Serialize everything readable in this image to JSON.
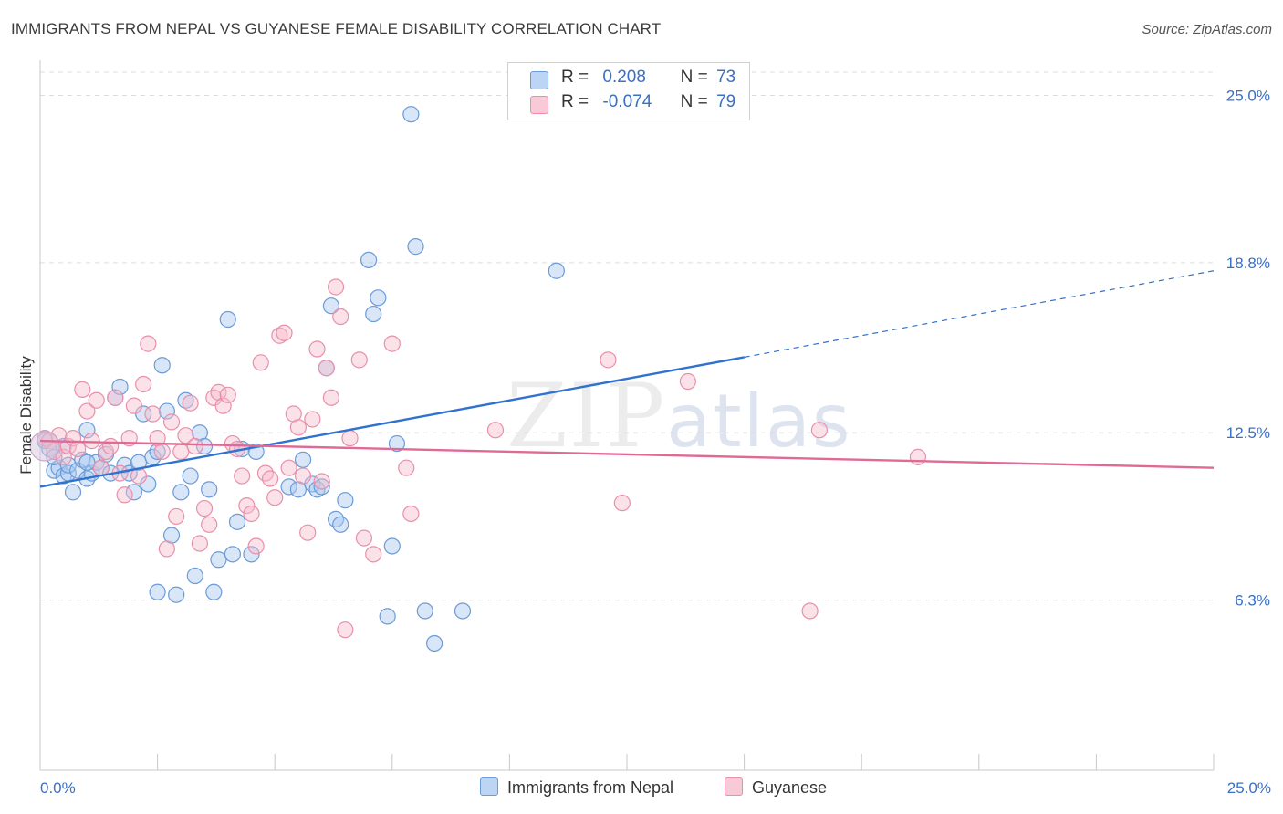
{
  "title": "IMMIGRANTS FROM NEPAL VS GUYANESE FEMALE DISABILITY CORRELATION CHART",
  "source": "Source: ZipAtlas.com",
  "watermark": {
    "zip": "ZIP",
    "atlas": "atlas"
  },
  "legend": {
    "r_label": "R =",
    "n_label": "N =",
    "entries": [
      {
        "r": "0.208",
        "n": "73"
      },
      {
        "r": "-0.074",
        "n": "79"
      }
    ]
  },
  "bottom_legend": [
    "Immigrants from Nepal",
    "Guyanese"
  ],
  "colors": {
    "nepal_fill": "#a9c8f0",
    "nepal_stroke": "#6b9bd8",
    "nepal_line": "#2f72cf",
    "guyanese_fill": "#f6bccd",
    "guyanese_stroke": "#e890ab",
    "guyanese_line": "#e06a96",
    "tick_label": "#3a6fc4"
  },
  "chart_data": {
    "type": "scatter",
    "title": "IMMIGRANTS FROM NEPAL VS GUYANESE FEMALE DISABILITY CORRELATION CHART",
    "xlabel": "",
    "ylabel": "Female Disability",
    "xlim": [
      0,
      25
    ],
    "ylim": [
      0,
      26.3
    ],
    "x_tick_labels": [
      "0.0%",
      "25.0%"
    ],
    "y_ticks": [
      6.3,
      12.5,
      18.8,
      25.0
    ],
    "y_tick_labels": [
      "6.3%",
      "12.5%",
      "18.8%",
      "25.0%"
    ],
    "grid": "horizontal dashed",
    "legend_position": "top-center",
    "series": [
      {
        "name": "Immigrants from Nepal",
        "r": 0.208,
        "n": 73,
        "trend": {
          "x0": 0,
          "y0": 10.5,
          "x1": 15.0,
          "y1": 15.3,
          "dashed_to_x": 25,
          "dashed_to_y": 18.5
        },
        "points": [
          [
            0.1,
            12.2
          ],
          [
            0.2,
            11.9
          ],
          [
            0.3,
            11.1
          ],
          [
            0.4,
            11.2
          ],
          [
            0.5,
            10.9
          ],
          [
            0.5,
            12.0
          ],
          [
            0.6,
            11.0
          ],
          [
            0.6,
            11.3
          ],
          [
            0.7,
            10.3
          ],
          [
            0.8,
            11.1
          ],
          [
            0.9,
            11.5
          ],
          [
            1.0,
            12.6
          ],
          [
            1.0,
            10.8
          ],
          [
            1.1,
            11.0
          ],
          [
            1.2,
            11.4
          ],
          [
            1.3,
            11.2
          ],
          [
            1.4,
            11.7
          ],
          [
            1.5,
            11.0
          ],
          [
            1.6,
            13.8
          ],
          [
            1.7,
            14.2
          ],
          [
            1.8,
            11.3
          ],
          [
            1.9,
            11.0
          ],
          [
            2.0,
            10.3
          ],
          [
            2.1,
            11.4
          ],
          [
            2.2,
            13.2
          ],
          [
            2.3,
            10.6
          ],
          [
            2.4,
            11.6
          ],
          [
            2.5,
            6.6
          ],
          [
            2.6,
            15.0
          ],
          [
            2.7,
            13.3
          ],
          [
            2.8,
            8.7
          ],
          [
            2.9,
            6.5
          ],
          [
            3.0,
            10.3
          ],
          [
            3.1,
            13.7
          ],
          [
            3.2,
            10.9
          ],
          [
            3.3,
            7.2
          ],
          [
            3.4,
            12.5
          ],
          [
            3.5,
            12.0
          ],
          [
            3.6,
            10.4
          ],
          [
            3.7,
            6.6
          ],
          [
            3.8,
            7.8
          ],
          [
            4.0,
            16.7
          ],
          [
            4.1,
            8.0
          ],
          [
            4.2,
            9.2
          ],
          [
            4.3,
            11.9
          ],
          [
            4.5,
            8.0
          ],
          [
            4.6,
            11.8
          ],
          [
            5.3,
            10.5
          ],
          [
            5.5,
            10.4
          ],
          [
            5.6,
            11.5
          ],
          [
            5.8,
            10.6
          ],
          [
            5.9,
            10.4
          ],
          [
            6.0,
            10.5
          ],
          [
            6.1,
            14.9
          ],
          [
            6.2,
            17.2
          ],
          [
            6.3,
            9.3
          ],
          [
            6.4,
            9.1
          ],
          [
            6.5,
            10.0
          ],
          [
            7.0,
            18.9
          ],
          [
            7.1,
            16.9
          ],
          [
            7.2,
            17.5
          ],
          [
            7.4,
            5.7
          ],
          [
            7.5,
            8.3
          ],
          [
            7.6,
            12.1
          ],
          [
            7.9,
            24.3
          ],
          [
            8.0,
            19.4
          ],
          [
            8.2,
            5.9
          ],
          [
            8.4,
            4.7
          ],
          [
            9.0,
            5.9
          ],
          [
            11.0,
            18.5
          ],
          [
            1.0,
            11.4
          ],
          [
            0.3,
            11.6
          ],
          [
            2.5,
            11.8
          ]
        ]
      },
      {
        "name": "Guyanese",
        "r": -0.074,
        "n": 79,
        "trend": {
          "x0": 0,
          "y0": 12.2,
          "x1": 25,
          "y1": 11.2
        },
        "points": [
          [
            0.1,
            12.3
          ],
          [
            0.2,
            12.2
          ],
          [
            0.3,
            11.8
          ],
          [
            0.4,
            12.4
          ],
          [
            0.5,
            11.6
          ],
          [
            0.6,
            12.0
          ],
          [
            0.7,
            12.3
          ],
          [
            0.8,
            11.9
          ],
          [
            0.9,
            14.1
          ],
          [
            1.0,
            13.3
          ],
          [
            1.1,
            12.2
          ],
          [
            1.2,
            13.7
          ],
          [
            1.3,
            11.2
          ],
          [
            1.4,
            11.8
          ],
          [
            1.5,
            12.0
          ],
          [
            1.6,
            13.8
          ],
          [
            1.7,
            11.0
          ],
          [
            1.8,
            10.2
          ],
          [
            1.9,
            12.3
          ],
          [
            2.0,
            13.5
          ],
          [
            2.1,
            10.9
          ],
          [
            2.2,
            14.3
          ],
          [
            2.3,
            15.8
          ],
          [
            2.4,
            13.2
          ],
          [
            2.5,
            12.3
          ],
          [
            2.6,
            11.8
          ],
          [
            2.7,
            8.2
          ],
          [
            2.8,
            12.9
          ],
          [
            2.9,
            9.4
          ],
          [
            3.0,
            11.8
          ],
          [
            3.1,
            12.4
          ],
          [
            3.2,
            13.6
          ],
          [
            3.3,
            12.0
          ],
          [
            3.4,
            8.4
          ],
          [
            3.5,
            9.7
          ],
          [
            3.6,
            9.1
          ],
          [
            3.7,
            13.8
          ],
          [
            3.8,
            14.0
          ],
          [
            3.9,
            13.5
          ],
          [
            4.0,
            13.9
          ],
          [
            4.1,
            12.1
          ],
          [
            4.2,
            11.9
          ],
          [
            4.3,
            10.9
          ],
          [
            4.4,
            9.8
          ],
          [
            4.5,
            9.5
          ],
          [
            4.6,
            8.3
          ],
          [
            4.7,
            15.1
          ],
          [
            4.8,
            11.0
          ],
          [
            4.9,
            10.8
          ],
          [
            5.0,
            10.1
          ],
          [
            5.1,
            16.1
          ],
          [
            5.2,
            16.2
          ],
          [
            5.3,
            11.2
          ],
          [
            5.4,
            13.2
          ],
          [
            5.5,
            12.7
          ],
          [
            5.6,
            10.9
          ],
          [
            5.7,
            8.8
          ],
          [
            5.8,
            13.0
          ],
          [
            5.9,
            15.6
          ],
          [
            6.0,
            10.7
          ],
          [
            6.1,
            14.9
          ],
          [
            6.2,
            13.8
          ],
          [
            6.3,
            17.9
          ],
          [
            6.4,
            16.8
          ],
          [
            6.5,
            5.2
          ],
          [
            6.6,
            12.3
          ],
          [
            6.8,
            15.2
          ],
          [
            6.9,
            8.6
          ],
          [
            7.1,
            8.0
          ],
          [
            7.5,
            15.8
          ],
          [
            7.8,
            11.2
          ],
          [
            7.9,
            9.5
          ],
          [
            9.7,
            12.6
          ],
          [
            12.1,
            15.2
          ],
          [
            12.4,
            9.9
          ],
          [
            13.8,
            14.4
          ],
          [
            16.4,
            5.9
          ],
          [
            16.6,
            12.6
          ],
          [
            18.7,
            11.6
          ]
        ]
      }
    ]
  }
}
